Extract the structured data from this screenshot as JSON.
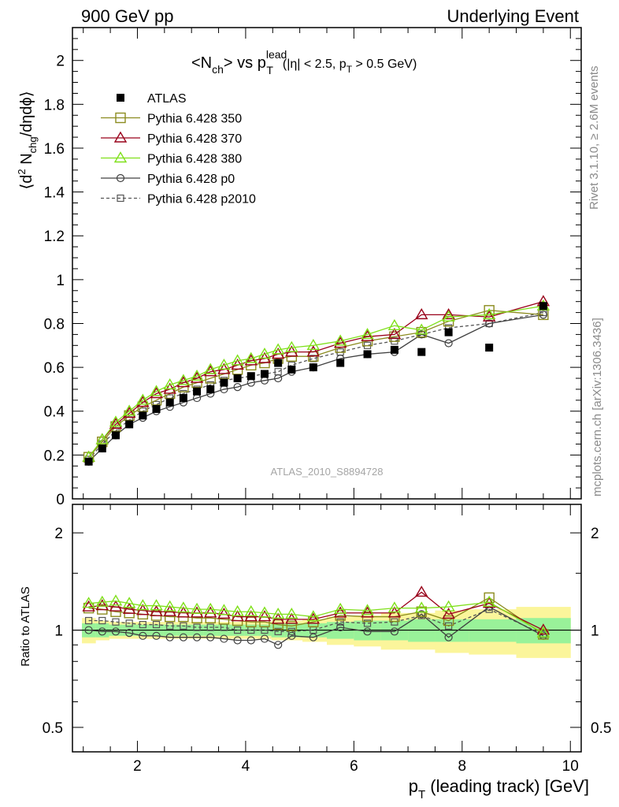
{
  "header": {
    "left": "900 GeV pp",
    "right": "Underlying Event"
  },
  "side_labels": {
    "rivet": "Rivet 3.1.10, ≥ 2.6M events",
    "mcplots": "mcplots.cern.ch [arXiv:1306.3436]"
  },
  "colors": {
    "atlas": "#000000",
    "p350": "#8b8b1e",
    "p370": "#99001a",
    "p380": "#7fe01a",
    "p0": "#404040",
    "p2010": "#555555",
    "band_inner": "#99f299",
    "band_outer": "#fbf59b"
  },
  "chart_data": [
    {
      "type": "scatter",
      "title": "<Nch> vs pT lead (|η| < 2.5, pT > 0.5 GeV)",
      "title_parts": {
        "n": "<N",
        "ch": "ch",
        "vs": "> vs p",
        "lead": "lead",
        "T": "T",
        "cut1": "(|η| < 2.5, p",
        "cut2": "T",
        "cut3": " > 0.5 GeV)"
      },
      "ylabel": "⟨d² Nchg/dηdϕ⟩",
      "ylabel_parts": {
        "a": "⟨d",
        "sup": "2",
        "b": " N",
        "sub": "chg",
        "c": "/dηdϕ⟩"
      },
      "watermark": "ATLAS_2010_S8894728",
      "xlim": [
        0.8,
        10.2
      ],
      "ylim": [
        0,
        2.15
      ],
      "yticks": [
        "0",
        "0.2",
        "0.4",
        "0.6",
        "0.8",
        "1",
        "1.2",
        "1.4",
        "1.6",
        "1.8",
        "2"
      ],
      "x": [
        1.1,
        1.35,
        1.6,
        1.85,
        2.1,
        2.35,
        2.6,
        2.85,
        3.1,
        3.35,
        3.6,
        3.85,
        4.1,
        4.35,
        4.6,
        4.85,
        5.25,
        5.75,
        6.25,
        6.75,
        7.25,
        7.75,
        8.5,
        9.5
      ],
      "legend_position": "top-left",
      "series": [
        {
          "name": "ATLAS",
          "key": "atlas",
          "marker": "square-filled",
          "values": [
            0.17,
            0.23,
            0.29,
            0.34,
            0.38,
            0.41,
            0.44,
            0.46,
            0.49,
            0.5,
            0.53,
            0.55,
            0.56,
            0.57,
            0.62,
            0.59,
            0.6,
            0.62,
            0.66,
            0.68,
            0.67,
            0.76,
            0.69,
            0.88
          ]
        },
        {
          "name": "Pythia 6.428 350",
          "key": "p350",
          "marker": "square-open",
          "dash": "",
          "values": [
            0.19,
            0.26,
            0.33,
            0.38,
            0.42,
            0.45,
            0.48,
            0.51,
            0.53,
            0.55,
            0.57,
            0.59,
            0.61,
            0.62,
            0.64,
            0.65,
            0.65,
            0.69,
            0.72,
            0.74,
            0.76,
            0.81,
            0.86,
            0.84
          ]
        },
        {
          "name": "Pythia 6.428 370",
          "key": "p370",
          "marker": "triangle-open",
          "dash": "",
          "values": [
            0.19,
            0.27,
            0.34,
            0.39,
            0.44,
            0.48,
            0.5,
            0.53,
            0.55,
            0.58,
            0.59,
            0.61,
            0.63,
            0.64,
            0.66,
            0.67,
            0.67,
            0.71,
            0.74,
            0.75,
            0.84,
            0.84,
            0.83,
            0.9
          ]
        },
        {
          "name": "Pythia 6.428 380",
          "key": "p380",
          "marker": "triangle-open",
          "dash": "",
          "values": [
            0.19,
            0.27,
            0.35,
            0.4,
            0.45,
            0.49,
            0.52,
            0.54,
            0.56,
            0.59,
            0.61,
            0.63,
            0.64,
            0.66,
            0.68,
            0.69,
            0.7,
            0.72,
            0.75,
            0.79,
            0.77,
            0.83,
            0.84,
            0.88
          ]
        },
        {
          "name": "Pythia 6.428 p0",
          "key": "p0",
          "marker": "circle-open",
          "dash": "",
          "values": [
            0.17,
            0.23,
            0.29,
            0.34,
            0.37,
            0.4,
            0.42,
            0.44,
            0.46,
            0.48,
            0.5,
            0.51,
            0.53,
            0.54,
            0.55,
            0.58,
            0.6,
            0.64,
            0.66,
            0.67,
            0.75,
            0.71,
            0.8,
            0.84
          ]
        },
        {
          "name": "Pythia 6.428 p2010",
          "key": "p2010",
          "marker": "square-open-small",
          "dash": "4,3",
          "values": [
            0.18,
            0.25,
            0.31,
            0.36,
            0.4,
            0.43,
            0.46,
            0.48,
            0.5,
            0.52,
            0.54,
            0.55,
            0.56,
            0.57,
            0.58,
            0.61,
            0.64,
            0.67,
            0.7,
            0.72,
            0.75,
            0.78,
            0.8,
            0.85
          ]
        }
      ]
    },
    {
      "type": "scatter",
      "ylabel": "Ratio to ATLAS",
      "xlabel": "pT (leading track) [GeV]",
      "xlabel_parts": {
        "a": "p",
        "sub": "T",
        "b": " (leading track) [GeV]"
      },
      "xlim": [
        0.8,
        10.2
      ],
      "xticks": [
        "2",
        "4",
        "6",
        "8",
        "10"
      ],
      "ylim": [
        0.42,
        2.45
      ],
      "log_y": true,
      "yticks": [
        "0.5",
        "1",
        "2"
      ],
      "reference": 1,
      "bands": {
        "inner_halfwidth": [
          0.05,
          0.05,
          0.04,
          0.04,
          0.04,
          0.04,
          0.04,
          0.04,
          0.04,
          0.04,
          0.04,
          0.04,
          0.04,
          0.04,
          0.05,
          0.05,
          0.05,
          0.06,
          0.07,
          0.07,
          0.08,
          0.08,
          0.08,
          0.09
        ],
        "outer_halfwidth": [
          0.09,
          0.07,
          0.06,
          0.06,
          0.06,
          0.06,
          0.06,
          0.06,
          0.06,
          0.06,
          0.06,
          0.06,
          0.06,
          0.06,
          0.07,
          0.07,
          0.08,
          0.1,
          0.11,
          0.13,
          0.13,
          0.15,
          0.16,
          0.18
        ]
      },
      "series": [
        {
          "name": "Pythia 6.428 350",
          "key": "p350",
          "values": [
            1.17,
            1.16,
            1.14,
            1.13,
            1.12,
            1.11,
            1.1,
            1.1,
            1.09,
            1.09,
            1.08,
            1.07,
            1.06,
            1.06,
            1.04,
            1.03,
            1.06,
            1.11,
            1.1,
            1.1,
            1.14,
            1.07,
            1.26,
            0.97
          ]
        },
        {
          "name": "Pythia 6.428 370",
          "key": "p370",
          "values": [
            1.18,
            1.19,
            1.18,
            1.16,
            1.15,
            1.14,
            1.14,
            1.13,
            1.13,
            1.13,
            1.12,
            1.1,
            1.1,
            1.1,
            1.08,
            1.08,
            1.08,
            1.13,
            1.13,
            1.13,
            1.31,
            1.12,
            1.21,
            1.0
          ]
        },
        {
          "name": "Pythia 6.428 380",
          "key": "p380",
          "values": [
            1.21,
            1.22,
            1.23,
            1.21,
            1.19,
            1.19,
            1.18,
            1.17,
            1.16,
            1.16,
            1.15,
            1.14,
            1.14,
            1.13,
            1.12,
            1.12,
            1.1,
            1.16,
            1.15,
            1.17,
            1.17,
            1.18,
            1.22,
            0.98
          ]
        },
        {
          "name": "Pythia 6.428 p0",
          "key": "p0",
          "values": [
            1.0,
            0.99,
            0.99,
            0.98,
            0.96,
            0.96,
            0.95,
            0.95,
            0.95,
            0.95,
            0.94,
            0.93,
            0.93,
            0.94,
            0.9,
            0.96,
            0.95,
            1.02,
            0.99,
            0.99,
            1.12,
            0.95,
            1.18,
            0.96
          ]
        },
        {
          "name": "Pythia 6.428 p2010",
          "key": "p2010",
          "values": [
            1.07,
            1.07,
            1.06,
            1.05,
            1.04,
            1.04,
            1.03,
            1.03,
            1.02,
            1.02,
            1.02,
            1.0,
            1.0,
            1.0,
            0.99,
            0.99,
            1.0,
            1.06,
            1.05,
            1.06,
            1.11,
            1.03,
            1.16,
            0.97
          ]
        }
      ]
    }
  ]
}
